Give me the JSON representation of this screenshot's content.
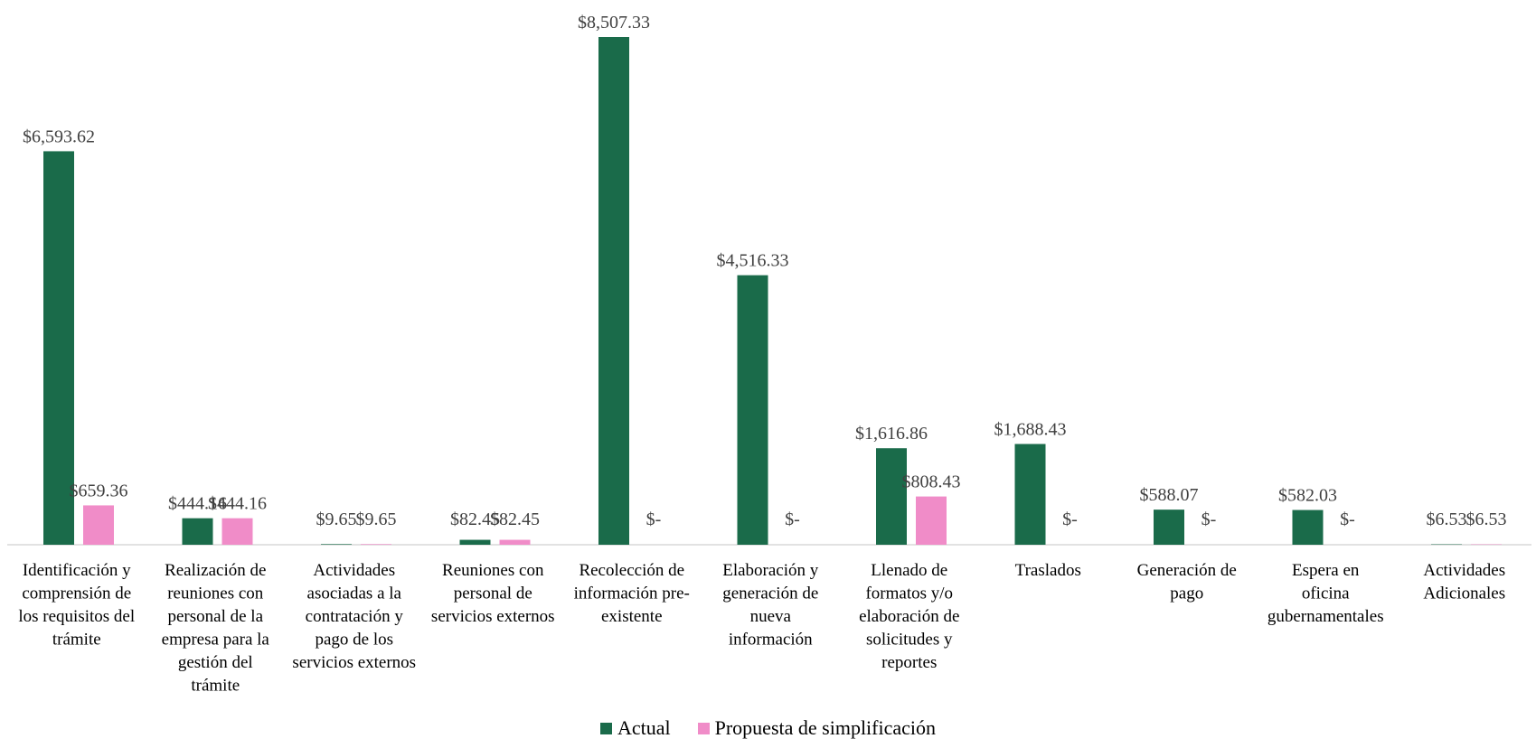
{
  "chart_data": {
    "type": "bar",
    "categories": [
      [
        "Identificación y",
        "comprensión de",
        "los requisitos del",
        "trámite"
      ],
      [
        "Realización de",
        "reuniones con",
        "personal de la",
        "empresa para la",
        "gestión del",
        "trámite"
      ],
      [
        "Actividades",
        "asociadas a la",
        "contratación y",
        "pago de los",
        "servicios externos"
      ],
      [
        "Reuniones con",
        "personal de",
        "servicios externos"
      ],
      [
        "Recolección de",
        "información pre-",
        "existente"
      ],
      [
        "Elaboración y",
        "generación de",
        "nueva",
        "información"
      ],
      [
        "Llenado de",
        "formatos y/o",
        "elaboración de",
        "solicitudes y",
        "reportes"
      ],
      [
        "Traslados"
      ],
      [
        "Generación de",
        "pago"
      ],
      [
        "Espera en",
        "oficina",
        "gubernamentales"
      ],
      [
        "Actividades",
        "Adicionales"
      ]
    ],
    "series": [
      {
        "name": "Actual",
        "color": "#1a6b4a",
        "values": [
          6593.62,
          444.16,
          9.65,
          82.45,
          8507.33,
          4516.33,
          1616.86,
          1688.43,
          588.07,
          582.03,
          6.53
        ],
        "labels": [
          "$6,593.62",
          "$444.16",
          "$9.65",
          "$82.45",
          "$8,507.33",
          "$4,516.33",
          "$1,616.86",
          "$1,688.43",
          "$588.07",
          "$582.03",
          "$6.53"
        ]
      },
      {
        "name": "Propuesta de simplificación",
        "color": "#f08cc8",
        "values": [
          659.36,
          444.16,
          9.65,
          82.45,
          0,
          0,
          808.43,
          0,
          0,
          0,
          6.53
        ],
        "labels": [
          "$659.36",
          "$444.16",
          "$9.65",
          "$82.45",
          "$-",
          "$-",
          "$808.43",
          "$-",
          "$-",
          "$-",
          "$6.53"
        ]
      }
    ],
    "ylim": [
      0,
      9000
    ],
    "grid": false,
    "legend_position": "bottom"
  }
}
